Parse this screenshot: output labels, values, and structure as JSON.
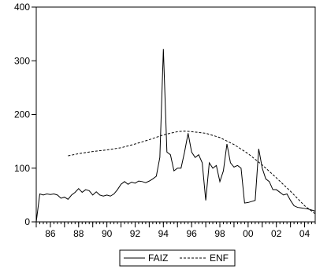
{
  "chart_data": {
    "type": "line",
    "title": "",
    "xlabel": "",
    "ylabel": "",
    "xlim": [
      1985.0,
      2004.75
    ],
    "ylim": [
      0,
      400
    ],
    "grid": false,
    "legend": {
      "placement": "bottom-center"
    },
    "y_ticks": [
      0,
      100,
      200,
      300,
      400
    ],
    "x_tick_labels": [
      {
        "label": "86",
        "year": 1986
      },
      {
        "label": "88",
        "year": 1988
      },
      {
        "label": "90",
        "year": 1990
      },
      {
        "label": "92",
        "year": 1992
      },
      {
        "label": "94",
        "year": 1994
      },
      {
        "label": "96",
        "year": 1996
      },
      {
        "label": "98",
        "year": 1998
      },
      {
        "label": "00",
        "year": 2000
      },
      {
        "label": "02",
        "year": 2002
      },
      {
        "label": "04",
        "year": 2004
      }
    ],
    "series": [
      {
        "name": "FAIZ",
        "style": "solid",
        "x": [
          1985.0,
          1985.25,
          1985.5,
          1985.75,
          1986.0,
          1986.25,
          1986.5,
          1986.75,
          1987.0,
          1987.25,
          1987.5,
          1987.75,
          1988.0,
          1988.25,
          1988.5,
          1988.75,
          1989.0,
          1989.25,
          1989.5,
          1989.75,
          1990.0,
          1990.25,
          1990.5,
          1990.75,
          1991.0,
          1991.25,
          1991.5,
          1991.75,
          1992.0,
          1992.25,
          1992.5,
          1992.75,
          1993.0,
          1993.25,
          1993.5,
          1993.75,
          1994.0,
          1994.25,
          1994.5,
          1994.75,
          1995.0,
          1995.25,
          1995.5,
          1995.75,
          1996.0,
          1996.25,
          1996.5,
          1996.75,
          1997.0,
          1997.25,
          1997.5,
          1997.75,
          1998.0,
          1998.25,
          1998.5,
          1998.75,
          1999.0,
          1999.25,
          1999.5,
          1999.75,
          2000.0,
          2000.25,
          2000.5,
          2000.75,
          2001.0,
          2001.25,
          2001.5,
          2001.75,
          2002.0,
          2002.25,
          2002.5,
          2002.75,
          2003.0,
          2003.25,
          2003.5,
          2003.75,
          2004.0,
          2004.25,
          2004.5,
          2004.75
        ],
        "values": [
          0,
          52,
          50,
          52,
          51,
          52,
          50,
          44,
          46,
          42,
          50,
          55,
          62,
          55,
          60,
          58,
          50,
          56,
          50,
          48,
          50,
          48,
          52,
          60,
          70,
          75,
          70,
          74,
          72,
          76,
          75,
          73,
          76,
          80,
          85,
          120,
          322,
          130,
          125,
          95,
          100,
          100,
          130,
          165,
          130,
          120,
          125,
          110,
          40,
          110,
          100,
          105,
          75,
          95,
          145,
          110,
          102,
          105,
          100,
          35,
          36,
          38,
          40,
          136,
          100,
          80,
          75,
          60,
          60,
          55,
          50,
          52,
          40,
          30,
          27,
          26,
          25,
          24,
          22,
          20
        ]
      },
      {
        "name": "ENF",
        "style": "dashed",
        "x": [
          1987.25,
          1988.0,
          1989.0,
          1990.0,
          1991.0,
          1992.0,
          1993.0,
          1994.0,
          1995.0,
          1995.5,
          1996.0,
          1997.0,
          1998.0,
          1999.0,
          2000.0,
          2001.0,
          2002.0,
          2003.0,
          2004.0,
          2004.75
        ],
        "values": [
          123,
          127,
          131,
          134,
          138,
          145,
          153,
          162,
          168,
          169,
          168,
          165,
          157,
          144,
          127,
          106,
          82,
          57,
          30,
          15
        ]
      }
    ],
    "colors": {
      "line": "#000000",
      "axis": "#000000",
      "background": "#ffffff"
    }
  }
}
